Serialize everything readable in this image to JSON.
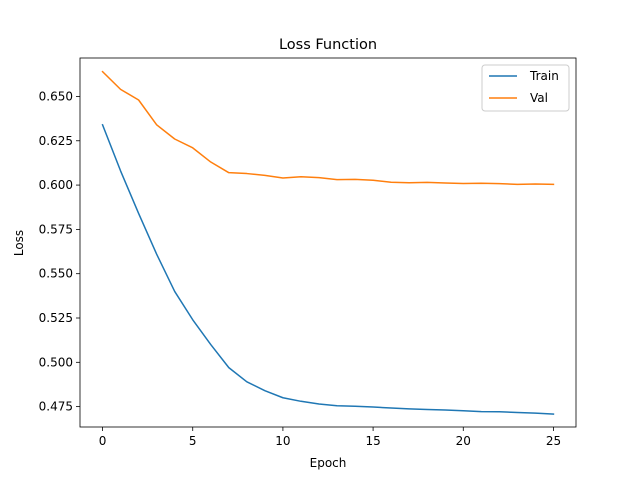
{
  "chart_data": {
    "type": "line",
    "title": "Loss Function",
    "xlabel": "Epoch",
    "ylabel": "Loss",
    "xlim": [
      -1.25,
      26.25
    ],
    "ylim": [
      0.4635,
      0.6717
    ],
    "xticks": [
      0,
      5,
      10,
      15,
      20,
      25
    ],
    "yticks": [
      0.475,
      0.5,
      0.525,
      0.55,
      0.575,
      0.6,
      0.625,
      0.65
    ],
    "ytick_labels": [
      "0.475",
      "0.500",
      "0.525",
      "0.550",
      "0.575",
      "0.600",
      "0.625",
      "0.650"
    ],
    "legend_position": "top-right",
    "grid": false,
    "x": [
      0,
      1,
      2,
      3,
      4,
      5,
      6,
      7,
      8,
      9,
      10,
      11,
      12,
      13,
      14,
      15,
      16,
      17,
      18,
      19,
      20,
      21,
      22,
      23,
      24,
      25
    ],
    "series": [
      {
        "name": "Train",
        "color": "#1f77b4",
        "values": [
          0.634,
          0.608,
          0.584,
          0.561,
          0.54,
          0.524,
          0.51,
          0.497,
          0.489,
          0.484,
          0.48,
          0.478,
          0.4765,
          0.4755,
          0.4752,
          0.4748,
          0.4742,
          0.4737,
          0.4734,
          0.4731,
          0.4727,
          0.4722,
          0.4721,
          0.4717,
          0.4713,
          0.4708
        ]
      },
      {
        "name": "Val",
        "color": "#ff7f0e",
        "values": [
          0.664,
          0.654,
          0.648,
          0.634,
          0.626,
          0.621,
          0.613,
          0.607,
          0.6065,
          0.6055,
          0.604,
          0.6047,
          0.6042,
          0.6031,
          0.6032,
          0.6027,
          0.6016,
          0.6013,
          0.6015,
          0.6012,
          0.6009,
          0.601,
          0.6008,
          0.6004,
          0.6006,
          0.6004
        ]
      }
    ]
  }
}
